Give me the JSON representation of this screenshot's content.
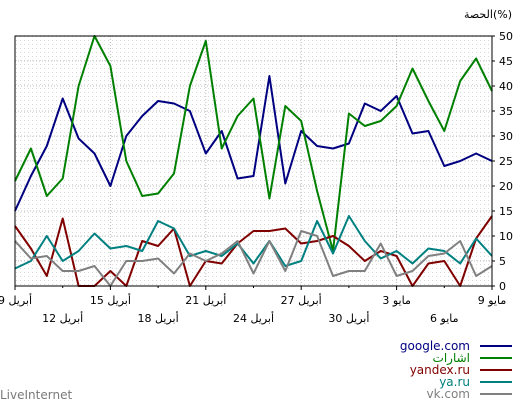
{
  "chart_data": {
    "type": "line",
    "title": "",
    "ylabel": "الحصة(%)",
    "xlabel": "",
    "ylim": [
      0,
      50
    ],
    "yticks": [
      "0",
      "5",
      "10",
      "15",
      "20",
      "25",
      "30",
      "35",
      "40",
      "45",
      "50"
    ],
    "grid": true,
    "x_tick_labels_upper": [
      "9 مايو",
      "3 مايو",
      "27 أبريل",
      "21 أبريل",
      "15 أبريل",
      "9 أبريل"
    ],
    "x_tick_labels_lower": [
      "6 مايو",
      "30 أبريل",
      "24 أبريل",
      "18 أبريل",
      "12 أبريل"
    ],
    "series": [
      {
        "name": "google.com",
        "color": "#000080",
        "values": [
          15,
          22,
          28,
          37.5,
          29.5,
          26.5,
          20,
          30,
          34,
          37,
          36.5,
          35,
          26.5,
          31,
          21.5,
          22,
          42,
          20.5,
          31,
          28,
          27.5,
          28.5,
          36.5,
          35,
          38,
          30.5,
          31,
          24,
          25,
          26.5,
          25
        ]
      },
      {
        "name": "اشارات",
        "color": "#008000",
        "values": [
          21,
          27.5,
          18,
          21.5,
          40,
          50,
          44,
          25,
          18,
          18.5,
          22.5,
          40,
          49,
          27.5,
          34,
          37.5,
          17.5,
          36,
          33,
          19,
          7,
          34.5,
          32,
          33,
          36,
          43.5,
          37,
          31,
          41,
          45.5,
          39
        ]
      },
      {
        "name": "yandex.ru",
        "color": "#800000",
        "values": [
          12,
          7.5,
          2,
          13.5,
          0,
          0,
          3,
          0,
          9,
          8,
          11.5,
          0,
          5,
          4.5,
          8.5,
          11,
          11,
          11.5,
          8.5,
          9,
          10,
          8,
          5,
          7,
          6,
          0,
          4.5,
          5,
          0,
          9.5,
          14
        ]
      },
      {
        "name": "ya.ru",
        "color": "#008080",
        "values": [
          3.5,
          5,
          10,
          5,
          7,
          10.5,
          7.5,
          8,
          7,
          13,
          11.5,
          6,
          7,
          6,
          8.5,
          4.5,
          9,
          4,
          5,
          13,
          6.5,
          14,
          9,
          5.5,
          7,
          4.5,
          7.5,
          7,
          4.5,
          9.5,
          6
        ]
      },
      {
        "name": "vk.com",
        "color": "#808080",
        "values": [
          9,
          5.5,
          6,
          3,
          3,
          4,
          0,
          5,
          5,
          5.5,
          2.5,
          6.5,
          5,
          6.5,
          9,
          2.5,
          9,
          3,
          11,
          10,
          2,
          3,
          3,
          8.5,
          2,
          3,
          6,
          6.5,
          9,
          2,
          4
        ]
      }
    ]
  },
  "footer": {
    "brand": "LiveInternet"
  }
}
